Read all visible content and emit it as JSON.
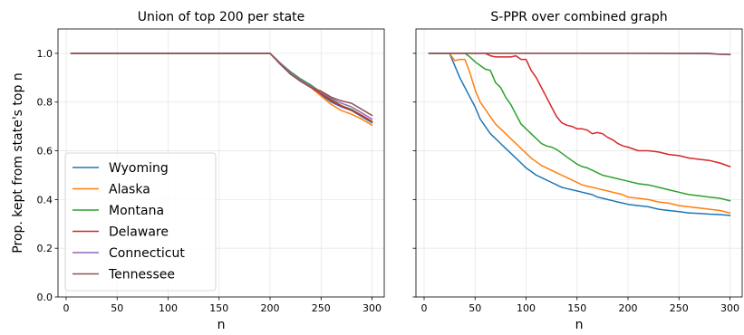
{
  "chart_data": [
    {
      "type": "line",
      "title": "Union of top 200 per state",
      "xlabel": "n",
      "ylabel": "Prop. kept from state's top n",
      "xlim": [
        -8,
        312
      ],
      "ylim": [
        0.0,
        1.1
      ],
      "xticks": [
        0,
        50,
        100,
        150,
        200,
        250,
        300
      ],
      "yticks": [
        0.0,
        0.2,
        0.4,
        0.6,
        0.8,
        1.0
      ],
      "ytick_labels": [
        "0.0",
        "0.2",
        "0.4",
        "0.6",
        "0.8",
        "1.0"
      ],
      "grid": true,
      "legend_position": "lower-left",
      "series": [
        {
          "name": "Wyoming",
          "color": "#1f77b4",
          "x": [
            5,
            200,
            210,
            220,
            230,
            240,
            250,
            260,
            270,
            280,
            290,
            300
          ],
          "y": [
            1.0,
            1.0,
            0.96,
            0.92,
            0.89,
            0.865,
            0.83,
            0.8,
            0.78,
            0.765,
            0.74,
            0.715
          ]
        },
        {
          "name": "Alaska",
          "color": "#ff7f0e",
          "x": [
            5,
            200,
            210,
            220,
            230,
            240,
            250,
            260,
            270,
            280,
            290,
            300
          ],
          "y": [
            1.0,
            1.0,
            0.96,
            0.92,
            0.89,
            0.86,
            0.825,
            0.79,
            0.765,
            0.75,
            0.73,
            0.705
          ]
        },
        {
          "name": "Montana",
          "color": "#2ca02c",
          "x": [
            5,
            200,
            210,
            220,
            230,
            240,
            250,
            260,
            270,
            280,
            290,
            300
          ],
          "y": [
            1.0,
            1.0,
            0.96,
            0.925,
            0.895,
            0.87,
            0.84,
            0.81,
            0.785,
            0.77,
            0.745,
            0.72
          ]
        },
        {
          "name": "Delaware",
          "color": "#d62728",
          "x": [
            5,
            200,
            210,
            220,
            230,
            240,
            250,
            260,
            270,
            280,
            290,
            300
          ],
          "y": [
            1.0,
            1.0,
            0.955,
            0.915,
            0.885,
            0.86,
            0.835,
            0.805,
            0.785,
            0.765,
            0.745,
            0.72
          ]
        },
        {
          "name": "Connecticut",
          "color": "#9467bd",
          "x": [
            5,
            200,
            210,
            220,
            230,
            240,
            250,
            260,
            270,
            280,
            290,
            300
          ],
          "y": [
            1.0,
            1.0,
            0.96,
            0.92,
            0.89,
            0.865,
            0.84,
            0.815,
            0.795,
            0.78,
            0.755,
            0.73
          ]
        },
        {
          "name": "Tennessee",
          "color": "#8c564b",
          "x": [
            5,
            200,
            210,
            220,
            230,
            240,
            250,
            260,
            270,
            280,
            290,
            300
          ],
          "y": [
            1.0,
            1.0,
            0.955,
            0.915,
            0.885,
            0.86,
            0.845,
            0.82,
            0.805,
            0.795,
            0.77,
            0.745
          ]
        }
      ]
    },
    {
      "type": "line",
      "title": "S-PPR over combined graph",
      "xlabel": "n",
      "ylabel": "",
      "xlim": [
        -8,
        312
      ],
      "ylim": [
        0.0,
        1.1
      ],
      "xticks": [
        0,
        50,
        100,
        150,
        200,
        250,
        300
      ],
      "yticks": [
        0.0,
        0.2,
        0.4,
        0.6,
        0.8,
        1.0
      ],
      "grid": true,
      "series": [
        {
          "name": "Wyoming",
          "color": "#1f77b4",
          "x": [
            5,
            25,
            30,
            35,
            40,
            45,
            50,
            55,
            60,
            65,
            70,
            75,
            80,
            85,
            90,
            95,
            100,
            105,
            110,
            115,
            120,
            125,
            130,
            135,
            140,
            145,
            150,
            155,
            160,
            165,
            170,
            175,
            180,
            185,
            190,
            195,
            200,
            210,
            220,
            230,
            240,
            250,
            260,
            270,
            280,
            290,
            300
          ],
          "y": [
            1.0,
            1.0,
            0.95,
            0.9,
            0.86,
            0.82,
            0.78,
            0.73,
            0.7,
            0.67,
            0.65,
            0.63,
            0.61,
            0.59,
            0.57,
            0.55,
            0.53,
            0.515,
            0.5,
            0.49,
            0.48,
            0.47,
            0.46,
            0.45,
            0.445,
            0.44,
            0.435,
            0.43,
            0.425,
            0.42,
            0.41,
            0.405,
            0.4,
            0.395,
            0.39,
            0.385,
            0.38,
            0.375,
            0.37,
            0.36,
            0.355,
            0.35,
            0.345,
            0.343,
            0.34,
            0.338,
            0.335
          ]
        },
        {
          "name": "Alaska",
          "color": "#ff7f0e",
          "x": [
            5,
            25,
            30,
            35,
            40,
            45,
            50,
            55,
            60,
            65,
            70,
            75,
            80,
            85,
            90,
            95,
            100,
            105,
            110,
            115,
            120,
            125,
            130,
            135,
            140,
            145,
            150,
            155,
            160,
            165,
            170,
            175,
            180,
            185,
            190,
            195,
            200,
            210,
            220,
            230,
            240,
            250,
            260,
            270,
            280,
            290,
            300
          ],
          "y": [
            1.0,
            1.0,
            0.97,
            0.975,
            0.975,
            0.92,
            0.85,
            0.8,
            0.77,
            0.74,
            0.71,
            0.69,
            0.67,
            0.65,
            0.63,
            0.61,
            0.59,
            0.57,
            0.555,
            0.54,
            0.53,
            0.52,
            0.51,
            0.5,
            0.49,
            0.48,
            0.47,
            0.46,
            0.455,
            0.45,
            0.445,
            0.44,
            0.435,
            0.43,
            0.425,
            0.42,
            0.41,
            0.405,
            0.4,
            0.39,
            0.385,
            0.375,
            0.37,
            0.365,
            0.36,
            0.355,
            0.345
          ]
        },
        {
          "name": "Montana",
          "color": "#2ca02c",
          "x": [
            5,
            40,
            45,
            50,
            55,
            60,
            65,
            70,
            75,
            80,
            85,
            90,
            95,
            100,
            105,
            110,
            115,
            120,
            125,
            130,
            135,
            140,
            145,
            150,
            155,
            160,
            165,
            170,
            175,
            180,
            185,
            190,
            195,
            200,
            210,
            220,
            230,
            240,
            250,
            260,
            270,
            280,
            290,
            300
          ],
          "y": [
            1.0,
            1.0,
            0.985,
            0.965,
            0.95,
            0.935,
            0.93,
            0.88,
            0.86,
            0.82,
            0.79,
            0.75,
            0.71,
            0.69,
            0.67,
            0.65,
            0.63,
            0.62,
            0.615,
            0.605,
            0.59,
            0.575,
            0.56,
            0.545,
            0.535,
            0.53,
            0.52,
            0.51,
            0.5,
            0.495,
            0.49,
            0.485,
            0.48,
            0.475,
            0.465,
            0.46,
            0.45,
            0.44,
            0.43,
            0.42,
            0.415,
            0.41,
            0.405,
            0.395
          ]
        },
        {
          "name": "Delaware",
          "color": "#d62728",
          "x": [
            5,
            60,
            65,
            70,
            75,
            80,
            85,
            90,
            95,
            100,
            105,
            110,
            115,
            120,
            125,
            130,
            135,
            140,
            145,
            150,
            155,
            160,
            165,
            170,
            175,
            180,
            185,
            190,
            195,
            200,
            210,
            220,
            230,
            240,
            250,
            260,
            270,
            280,
            290,
            300
          ],
          "y": [
            1.0,
            1.0,
            0.99,
            0.985,
            0.985,
            0.985,
            0.985,
            0.99,
            0.975,
            0.975,
            0.93,
            0.9,
            0.86,
            0.82,
            0.78,
            0.74,
            0.715,
            0.705,
            0.7,
            0.69,
            0.69,
            0.685,
            0.67,
            0.675,
            0.67,
            0.655,
            0.645,
            0.63,
            0.62,
            0.615,
            0.6,
            0.6,
            0.595,
            0.585,
            0.58,
            0.57,
            0.565,
            0.56,
            0.55,
            0.535
          ]
        },
        {
          "name": "Connecticut",
          "color": "#9467bd",
          "x": [
            5,
            100,
            200,
            280,
            290,
            300
          ],
          "y": [
            1.0,
            1.0,
            1.0,
            0.998,
            0.996,
            0.995
          ]
        },
        {
          "name": "Tennessee",
          "color": "#8c564b",
          "x": [
            5,
            100,
            200,
            280,
            290,
            300
          ],
          "y": [
            1.0,
            1.0,
            1.0,
            1.0,
            0.996,
            0.996
          ]
        }
      ]
    }
  ]
}
